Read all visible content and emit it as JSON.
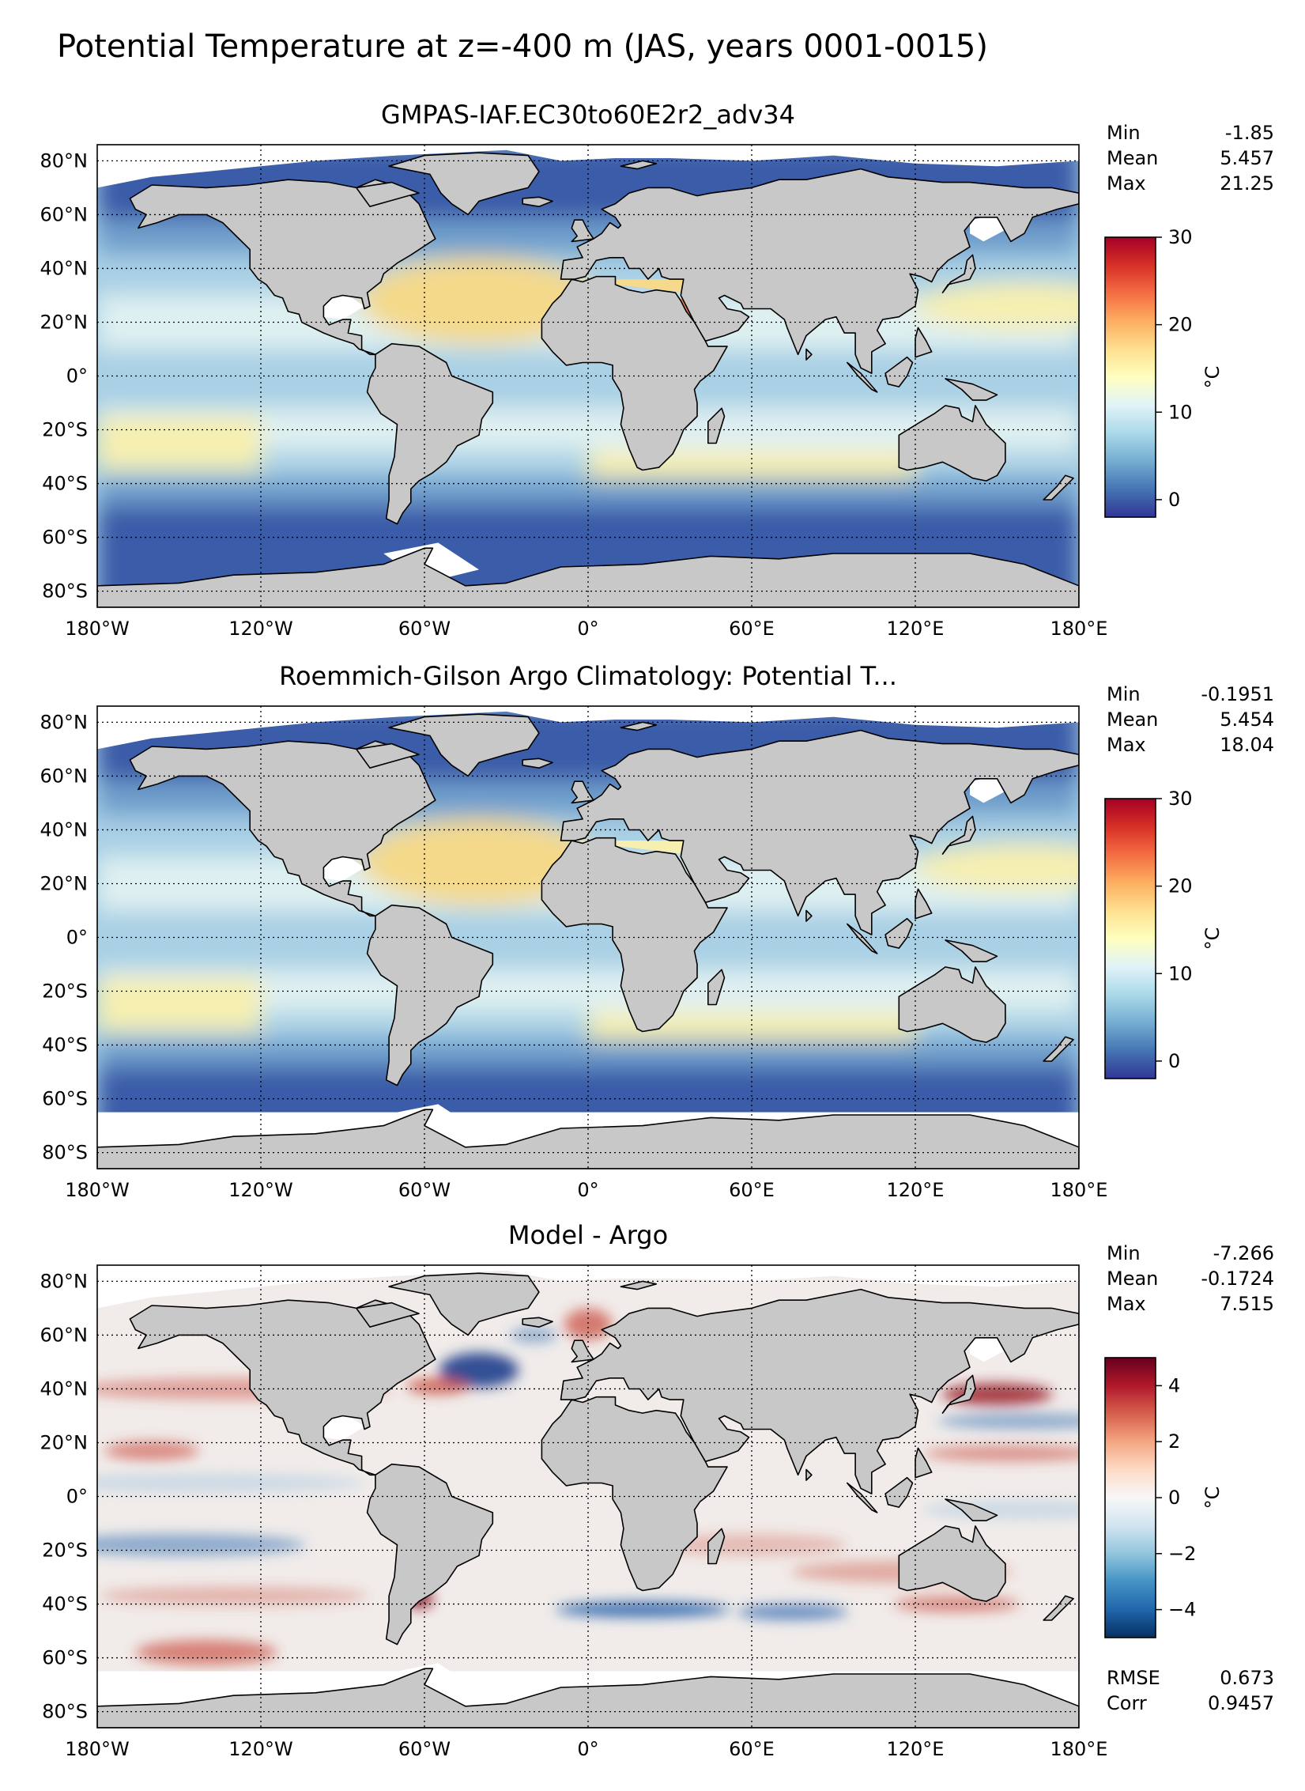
{
  "title": "Potential Temperature at z=-400 m (JAS, years 0001-0015)",
  "x_ticks": [
    "180°W",
    "120°W",
    "60°W",
    "0°",
    "60°E",
    "120°E",
    "180°E"
  ],
  "y_ticks_full": [
    "80°N",
    "60°N",
    "40°N",
    "20°N",
    "0°",
    "20°S",
    "40°S",
    "60°S",
    "80°S"
  ],
  "panels": [
    {
      "title": "GMPAS-IAF.EC30to60E2r2_adv34",
      "stats": [
        [
          "Min",
          "-1.85"
        ],
        [
          "Mean",
          "5.457"
        ],
        [
          "Max",
          "21.25"
        ]
      ],
      "colorbar": {
        "label": "°C",
        "ticks": [
          "0",
          "10",
          "20",
          "30"
        ],
        "range": [
          -2,
          30
        ],
        "colormap": "RdYlBu_r"
      },
      "bottom_stats": []
    },
    {
      "title": "Roemmich-Gilson Argo Climatology: Potential T...",
      "stats": [
        [
          "Min",
          "-0.1951"
        ],
        [
          "Mean",
          "5.454"
        ],
        [
          "Max",
          "18.04"
        ]
      ],
      "colorbar": {
        "label": "°C",
        "ticks": [
          "0",
          "10",
          "20",
          "30"
        ],
        "range": [
          -2,
          30
        ],
        "colormap": "RdYlBu_r"
      },
      "bottom_stats": []
    },
    {
      "title": "Model - Argo",
      "stats": [
        [
          "Min",
          "-7.266"
        ],
        [
          "Mean",
          "-0.1724"
        ],
        [
          "Max",
          "7.515"
        ]
      ],
      "colorbar": {
        "label": "°C",
        "ticks": [
          "−4",
          "−2",
          "0",
          "2",
          "4"
        ],
        "range": [
          -5,
          5
        ],
        "colormap": "RdBu_r"
      },
      "bottom_stats": [
        [
          "RMSE",
          "0.673"
        ],
        [
          "Corr",
          "0.9457"
        ]
      ]
    }
  ],
  "colors": {
    "land": "#c8c8c8",
    "cold": "#3b5ca8",
    "cool": "#6f9fcc",
    "mild": "#a9d0e5",
    "pale": "#dff0f1",
    "warm": "#f6efb0",
    "warmer": "#f4d98a",
    "diff_neutral": "#f1ecea",
    "diff_red": "#c9483a",
    "diff_blue": "#3a74b4"
  }
}
